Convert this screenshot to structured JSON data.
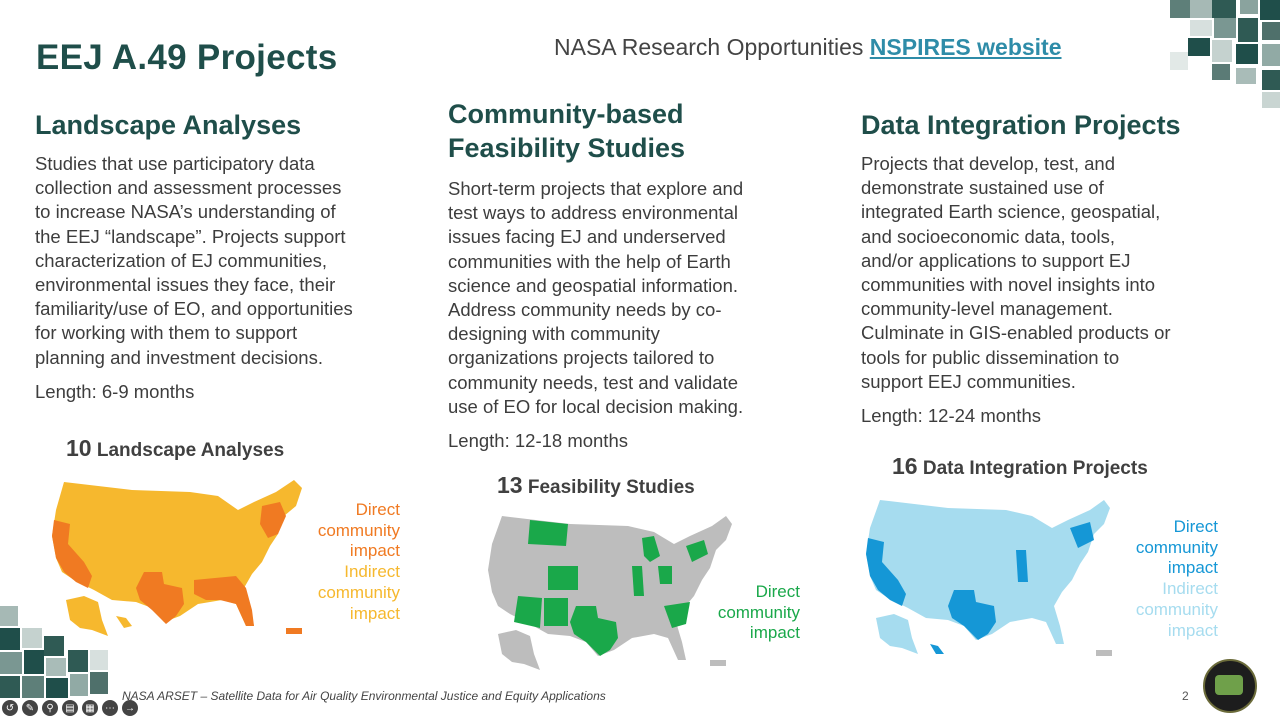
{
  "title": "EEJ A.49 Projects",
  "nasa_text": "NASA Research Opportunities",
  "nspires_link": "NSPIRES website",
  "columns": [
    {
      "heading_lines": [
        "Landscape Analyses"
      ],
      "body_lines": [
        "Studies that use participatory data",
        "collection and assessment processes",
        "to increase NASA’s understanding of",
        "the EEJ “landscape”. Projects support",
        "characterization of EJ communities,",
        "environmental issues they face, their",
        "familiarity/use of EO, and opportunities",
        "for working with them to support",
        "planning and investment decisions."
      ],
      "length": "Length: 6-9 months",
      "count_num": "10",
      "count_label": "Landscape Analyses",
      "legend": [
        {
          "text": "Direct",
          "tone": "direct"
        },
        {
          "text": "community",
          "tone": "direct"
        },
        {
          "text": "impact",
          "tone": "direct"
        },
        {
          "text": "Indirect",
          "tone": "indirect"
        },
        {
          "text": "community",
          "tone": "indirect"
        },
        {
          "text": "impact",
          "tone": "indirect"
        }
      ],
      "colors": {
        "direct": "#f07a22",
        "indirect": "#f6b82e"
      }
    },
    {
      "heading_lines": [
        "Community-based",
        "Feasibility Studies"
      ],
      "body_lines": [
        "Short-term projects that explore and",
        "test ways to address environmental",
        "issues facing EJ and underserved",
        "communities with the help of Earth",
        "science and geospatial information.",
        "Address community needs by co-",
        "designing with community",
        "organizations projects tailored to",
        "community needs, test and validate",
        "use of EO for local decision making."
      ],
      "length": "Length: 12-18 months",
      "count_num": "13",
      "count_label": "Feasibility Studies",
      "legend": [
        {
          "text": "Direct",
          "tone": "direct"
        },
        {
          "text": "community",
          "tone": "direct"
        },
        {
          "text": "impact",
          "tone": "direct"
        }
      ],
      "colors": {
        "direct": "#1aa84a",
        "base": "#bdbdbd"
      }
    },
    {
      "heading_lines": [
        "Data Integration Projects"
      ],
      "body_lines": [
        "Projects that develop, test, and",
        "demonstrate sustained use of",
        "integrated Earth science, geospatial,",
        "and socioeconomic data, tools,",
        "and/or applications to support EJ",
        "communities with novel insights into",
        "community-level management.",
        "Culminate in GIS-enabled products or",
        "tools for public dissemination to",
        "support EEJ communities."
      ],
      "length": "Length: 12-24 months",
      "count_num": "16",
      "count_label": "Data Integration Projects",
      "legend": [
        {
          "text": "Direct",
          "tone": "direct"
        },
        {
          "text": "community",
          "tone": "direct"
        },
        {
          "text": "impact",
          "tone": "direct"
        },
        {
          "text": "Indirect",
          "tone": "indirect"
        },
        {
          "text": "community",
          "tone": "indirect"
        },
        {
          "text": "impact",
          "tone": "indirect"
        }
      ],
      "colors": {
        "direct": "#1597d6",
        "indirect": "#a6dcef"
      }
    }
  ],
  "footer": "NASA ARSET – Satellite Data for Air Quality Environmental Justice and Equity Applications",
  "page_number": "2",
  "theme_colors": {
    "heading": "#1f4e4a",
    "link": "#2e8ca8"
  }
}
